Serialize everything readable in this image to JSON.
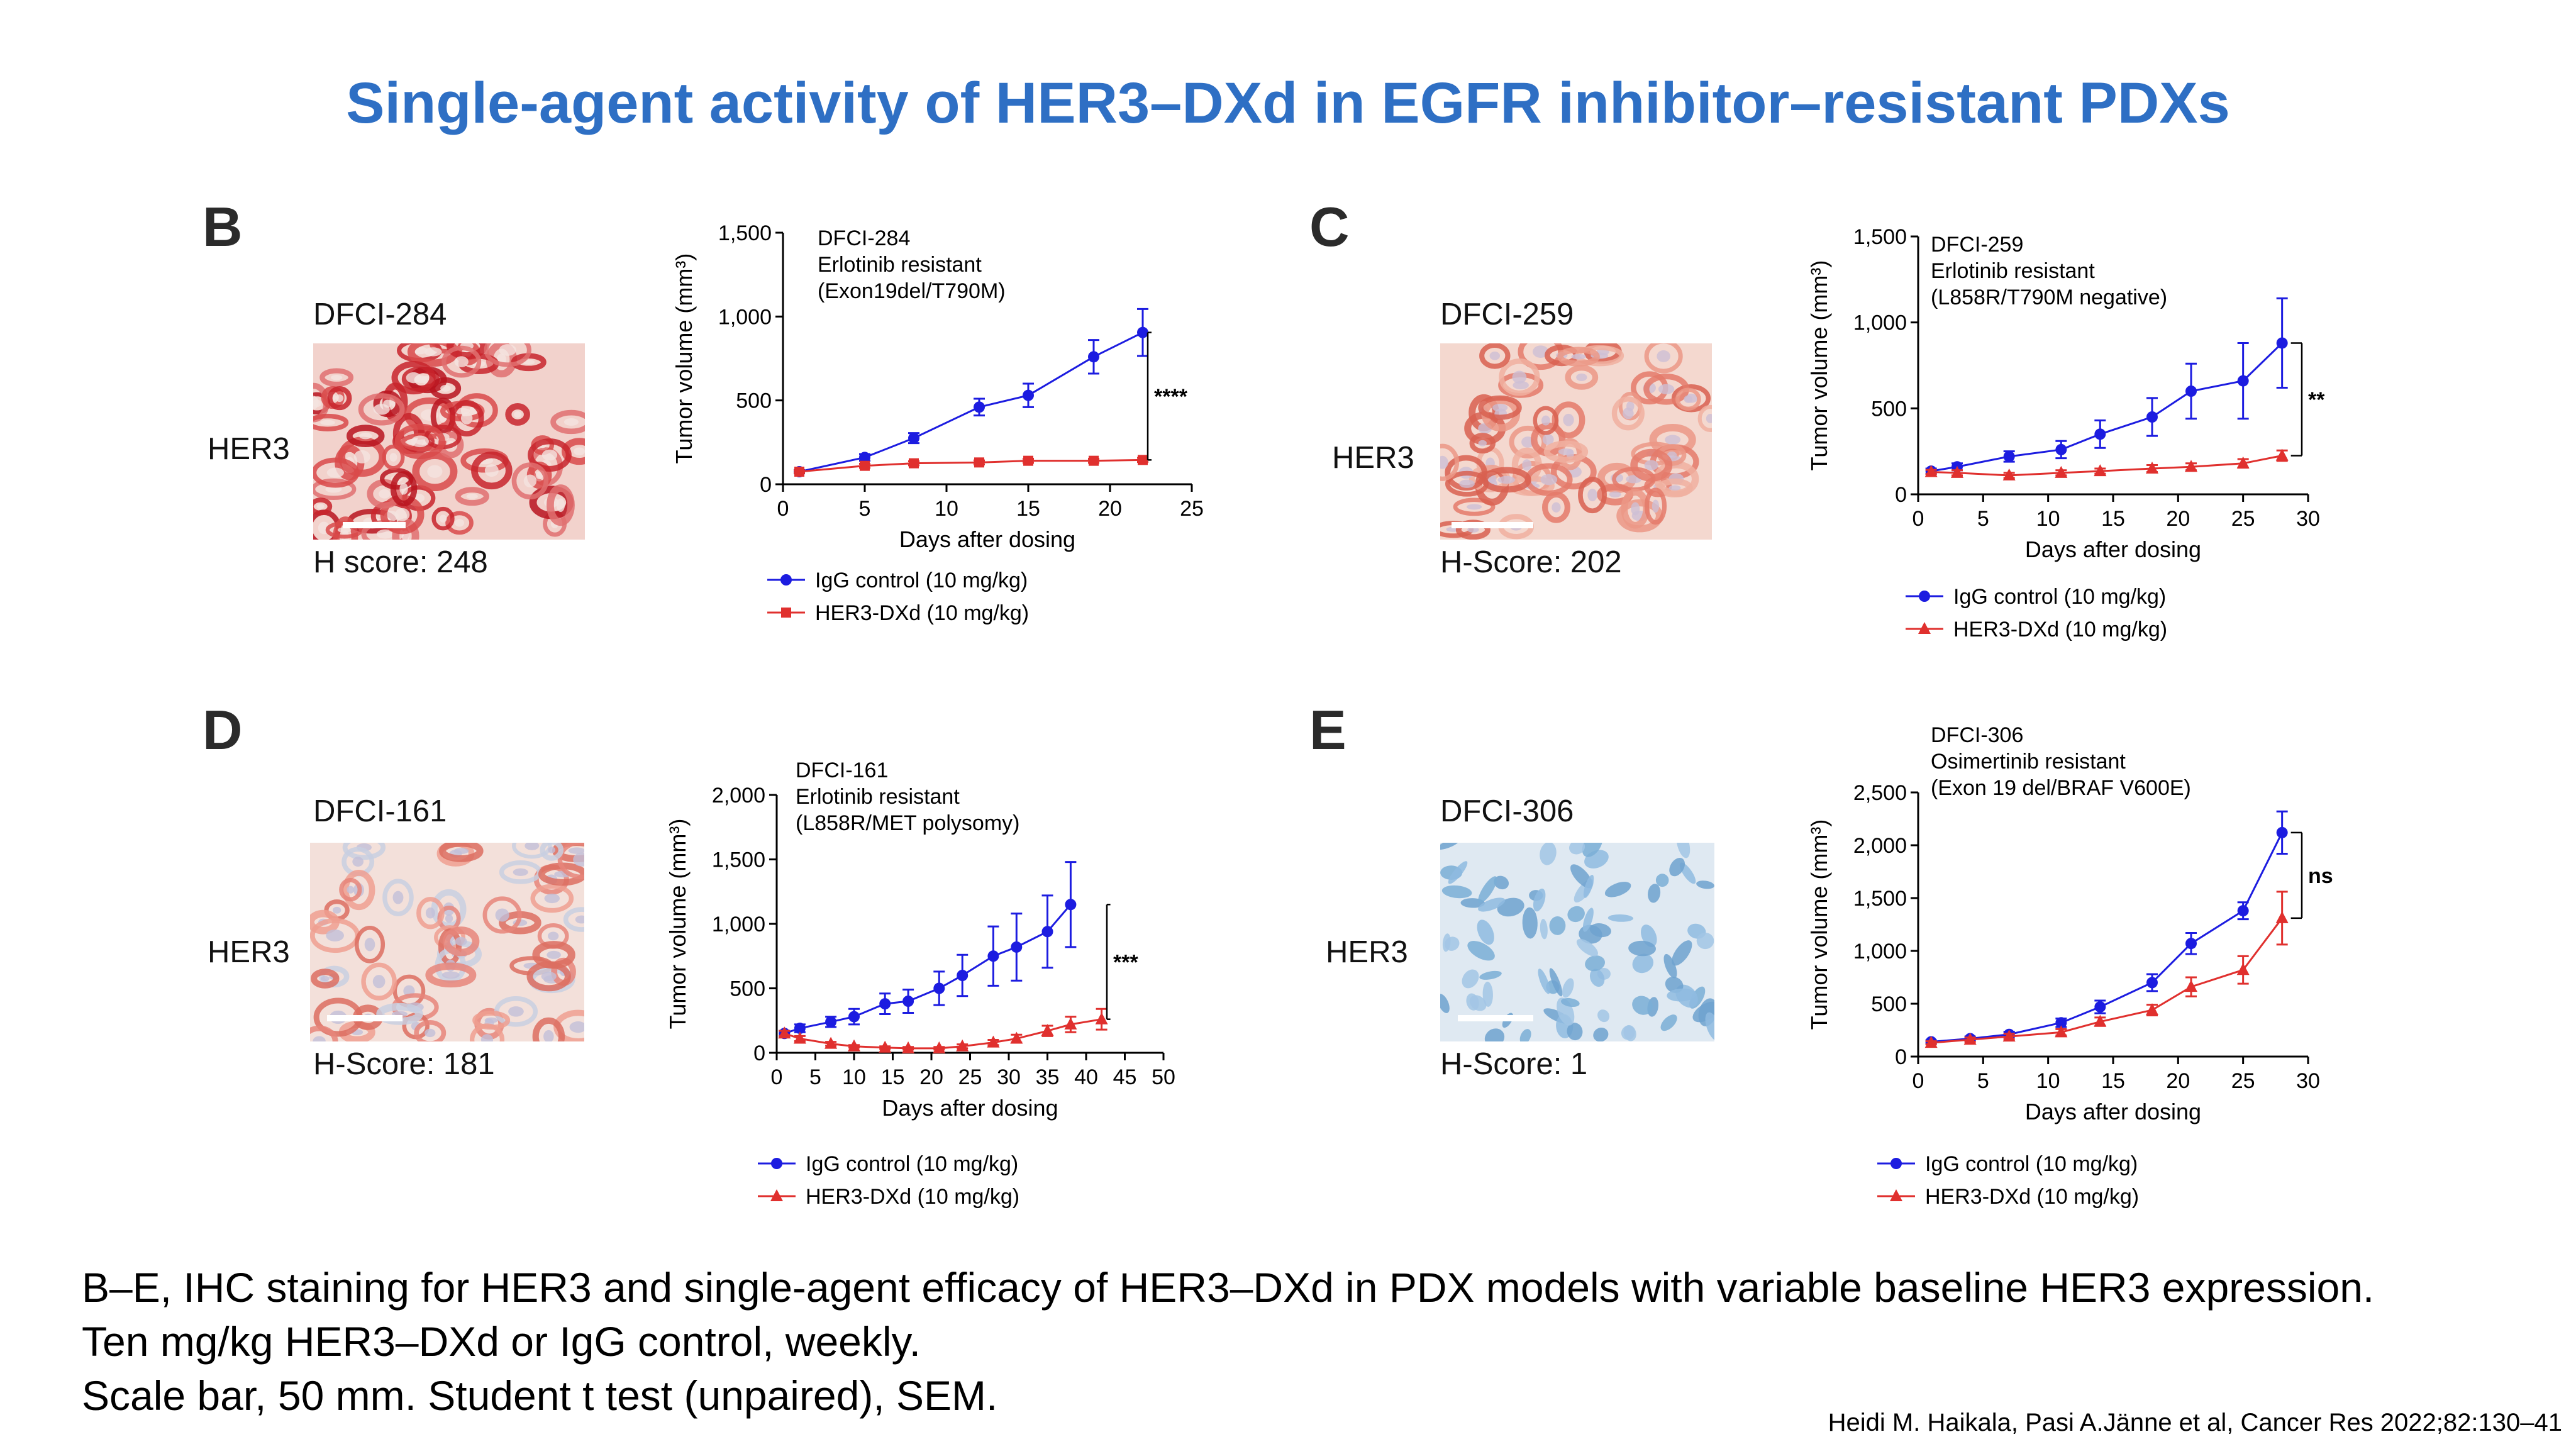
{
  "title": "Single-agent activity of HER3–DXd in EGFR inhibitor–resistant PDXs",
  "colors": {
    "title": "#2E6FC4",
    "igg": "#1C1CE0",
    "her3dxd": "#E0302E"
  },
  "panels": [
    {
      "letter": "B",
      "model": "DFCI-284",
      "marker": "HER3",
      "score": "H score: 248",
      "stain": "strong-red"
    },
    {
      "letter": "C",
      "model": "DFCI-259",
      "marker": "HER3",
      "score": "H-Score: 202",
      "stain": "moderate-red"
    },
    {
      "letter": "D",
      "model": "DFCI-161",
      "marker": "HER3",
      "score": "H-Score: 181",
      "stain": "moderate-red-mixed"
    },
    {
      "letter": "E",
      "model": "DFCI-306",
      "marker": "HER3",
      "score": "H-Score: 1",
      "stain": "negative-blue"
    }
  ],
  "chart_data": [
    {
      "type": "line",
      "annotation": [
        "DFCI-284",
        "Erlotinib resistant",
        "(Exon19del/T790M)"
      ],
      "xlabel": "Days after dosing",
      "ylabel": "Tumor volume (mm³)",
      "xlim": [
        0,
        25
      ],
      "ylim": [
        0,
        1500
      ],
      "xticks": [
        "0",
        "5",
        "10",
        "15",
        "20",
        "25"
      ],
      "yticks": [
        "0",
        "500",
        "1,000",
        "1,500"
      ],
      "significance": "****",
      "series": [
        {
          "name": "IgG control (10 mg/kg)",
          "marker": "circle",
          "color": "#1C1CE0",
          "x": [
            1,
            5,
            8,
            12,
            15,
            19,
            22
          ],
          "y": [
            75,
            160,
            275,
            460,
            530,
            760,
            905
          ],
          "err": [
            10,
            20,
            30,
            50,
            70,
            100,
            140
          ]
        },
        {
          "name": "HER3-DXd (10 mg/kg)",
          "marker": "square",
          "color": "#E0302E",
          "x": [
            1,
            5,
            8,
            12,
            15,
            19,
            22
          ],
          "y": [
            75,
            110,
            125,
            130,
            140,
            140,
            145
          ],
          "err": [
            8,
            12,
            12,
            12,
            12,
            12,
            12
          ]
        }
      ]
    },
    {
      "type": "line",
      "annotation": [
        "DFCI-259",
        "Erlotinib resistant",
        "(L858R/T790M negative)"
      ],
      "xlabel": "Days after dosing",
      "ylabel": "Tumor volume (mm³)",
      "xlim": [
        0,
        30
      ],
      "ylim": [
        0,
        1500
      ],
      "xticks": [
        "0",
        "5",
        "10",
        "15",
        "20",
        "25",
        "30"
      ],
      "yticks": [
        "0",
        "500",
        "1,000",
        "1,500"
      ],
      "significance": "**",
      "series": [
        {
          "name": "IgG control  (10 mg/kg)",
          "marker": "circle",
          "color": "#1C1CE0",
          "x": [
            1,
            3,
            7,
            11,
            14,
            18,
            21,
            25,
            28
          ],
          "y": [
            135,
            160,
            220,
            260,
            350,
            450,
            600,
            660,
            880
          ],
          "err": [
            15,
            20,
            30,
            50,
            80,
            110,
            160,
            220,
            260
          ]
        },
        {
          "name": "HER3-DXd (10 mg/kg)",
          "marker": "triangle",
          "color": "#E0302E",
          "x": [
            1,
            3,
            7,
            11,
            14,
            18,
            21,
            25,
            28
          ],
          "y": [
            130,
            125,
            110,
            125,
            135,
            150,
            160,
            180,
            225
          ],
          "err": [
            12,
            15,
            15,
            15,
            15,
            20,
            20,
            25,
            30
          ]
        }
      ]
    },
    {
      "type": "line",
      "annotation": [
        "DFCI-161",
        "Erlotinib resistant",
        "(L858R/MET polysomy)"
      ],
      "xlabel": "Days after dosing",
      "ylabel": "Tumor volume (mm³)",
      "xlim": [
        0,
        50
      ],
      "ylim": [
        0,
        2000
      ],
      "xticks": [
        "0",
        "5",
        "10",
        "15",
        "20",
        "25",
        "30",
        "35",
        "40",
        "45",
        "50"
      ],
      "yticks": [
        "0",
        "500",
        "1,000",
        "1,500",
        "2,000"
      ],
      "significance": "***",
      "series": [
        {
          "name": "IgG control (10 mg/kg)",
          "marker": "circle",
          "color": "#1C1CE0",
          "x": [
            1,
            3,
            7,
            10,
            14,
            17,
            21,
            24,
            28,
            31,
            35,
            38
          ],
          "y": [
            150,
            190,
            240,
            280,
            380,
            400,
            500,
            600,
            750,
            820,
            940,
            1150
          ],
          "err": [
            20,
            30,
            40,
            60,
            80,
            90,
            130,
            160,
            230,
            260,
            280,
            330
          ]
        },
        {
          "name": "HER3-DXd (10 mg/kg)",
          "marker": "triangle",
          "color": "#E0302E",
          "x": [
            1,
            3,
            7,
            10,
            14,
            17,
            21,
            24,
            28,
            31,
            35,
            38,
            42
          ],
          "y": [
            150,
            110,
            70,
            50,
            40,
            35,
            35,
            50,
            80,
            110,
            170,
            220,
            260
          ],
          "err": [
            20,
            20,
            15,
            10,
            10,
            10,
            10,
            15,
            20,
            30,
            40,
            60,
            80
          ]
        }
      ]
    },
    {
      "type": "line",
      "annotation": [
        "DFCI-306",
        "Osimertinib resistant",
        "(Exon 19 del/BRAF V600E)"
      ],
      "xlabel": "Days after dosing",
      "ylabel": "Tumor volume (mm³)",
      "xlim": [
        0,
        30
      ],
      "ylim": [
        0,
        2500
      ],
      "xticks": [
        "0",
        "5",
        "10",
        "15",
        "20",
        "25",
        "30"
      ],
      "yticks": [
        "0",
        "500",
        "1,000",
        "1,500",
        "2,000",
        "2,500"
      ],
      "significance": "ns",
      "series": [
        {
          "name": "IgG control  (10 mg/kg)",
          "marker": "circle",
          "color": "#1C1CE0",
          "x": [
            1,
            4,
            7,
            11,
            14,
            18,
            21,
            25,
            28
          ],
          "y": [
            140,
            170,
            210,
            320,
            470,
            700,
            1070,
            1380,
            2120
          ],
          "err": [
            15,
            20,
            25,
            40,
            60,
            80,
            100,
            80,
            200
          ]
        },
        {
          "name": "HER3-DXd (10 mg/kg)",
          "marker": "triangle",
          "color": "#E0302E",
          "x": [
            1,
            4,
            7,
            11,
            14,
            18,
            21,
            25,
            28
          ],
          "y": [
            130,
            160,
            190,
            230,
            330,
            440,
            660,
            820,
            1310
          ],
          "err": [
            15,
            20,
            25,
            30,
            40,
            50,
            90,
            130,
            250
          ]
        }
      ]
    }
  ],
  "caption": [
    "B–E, IHC staining for HER3 and single-agent efficacy of HER3–DXd in PDX models with variable baseline HER3 expression.",
    "Ten mg/kg HER3–DXd or IgG control, weekly.",
    "Scale bar, 50 mm. Student t test (unpaired), SEM."
  ],
  "citation": "Heidi M. Haikala, Pasi A.Jänne et al, Cancer Res 2022;82:130–41"
}
